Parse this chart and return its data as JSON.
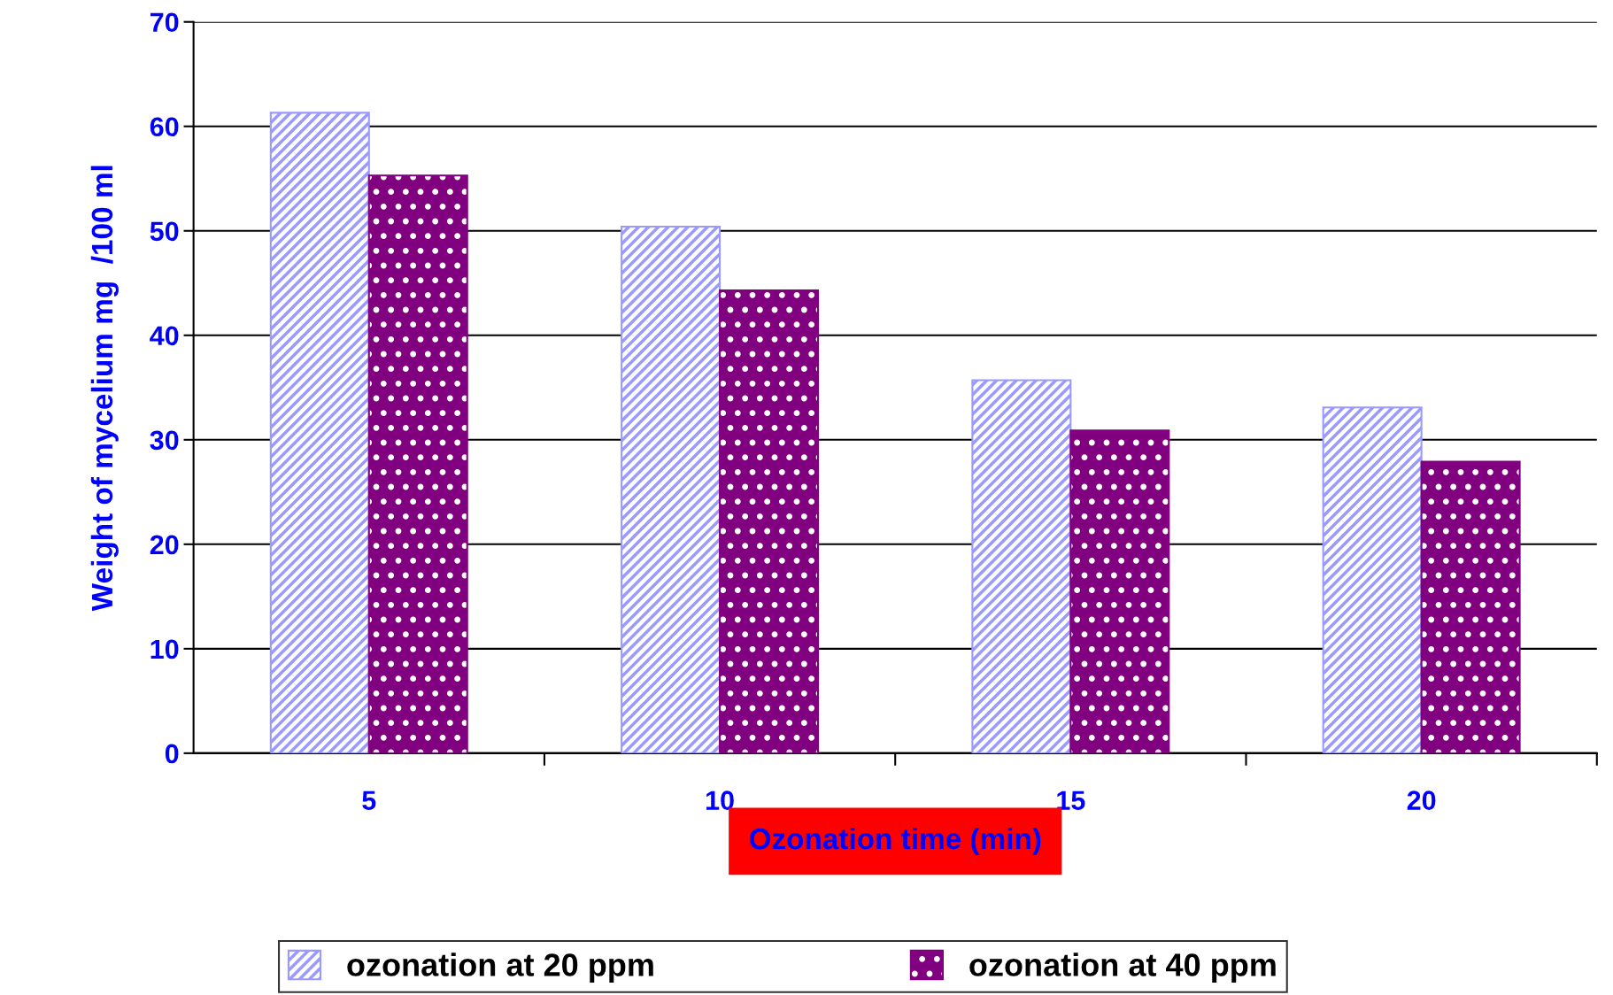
{
  "chart_data": {
    "type": "bar",
    "xlabel": "Ozonation time (min)",
    "ylabel": "Weight of mycelium mg  /100 ml",
    "categories": [
      "5",
      "10",
      "15",
      "20"
    ],
    "series": [
      {
        "name": "ozonation at 20 ppm",
        "color": "#9999ff",
        "values": [
          61.3,
          50.4,
          35.7,
          33.1
        ]
      },
      {
        "name": "ozonation at 40 ppm",
        "color": "#800080",
        "values": [
          55.3,
          44.3,
          30.9,
          27.9
        ]
      }
    ],
    "ylim": [
      0,
      70
    ],
    "yticks": [
      0,
      10,
      20,
      30,
      40,
      50,
      60,
      70
    ],
    "grid": "y",
    "legend": "bottom"
  }
}
